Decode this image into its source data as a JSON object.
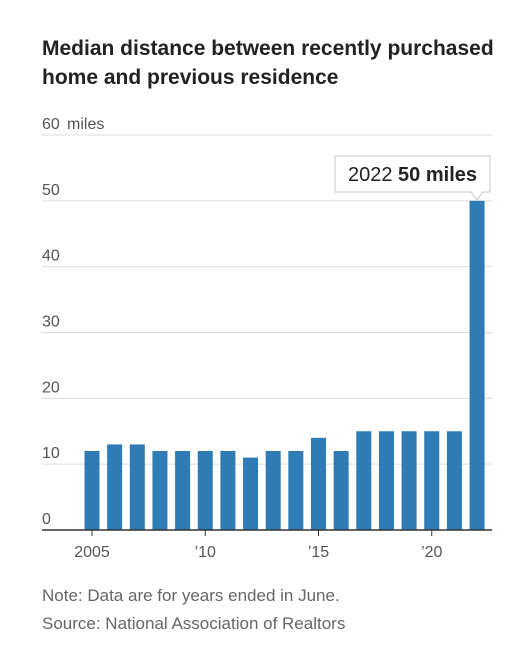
{
  "chart_data": {
    "type": "bar",
    "title": "Median distance between recently purchased home and previous residence",
    "unit": "miles",
    "categories": [
      2005,
      2006,
      2007,
      2008,
      2009,
      2010,
      2011,
      2012,
      2013,
      2014,
      2015,
      2016,
      2017,
      2018,
      2019,
      2020,
      2021,
      2022
    ],
    "values": [
      12,
      13,
      13,
      12,
      12,
      12,
      12,
      11,
      12,
      12,
      14,
      12,
      15,
      15,
      15,
      15,
      15,
      50
    ],
    "ylim": [
      0,
      60
    ],
    "y_ticks": [
      {
        "value": 60,
        "label": "60"
      },
      {
        "value": 50,
        "label": "50"
      },
      {
        "value": 40,
        "label": "40"
      },
      {
        "value": 30,
        "label": "30"
      },
      {
        "value": 20,
        "label": "20"
      },
      {
        "value": 10,
        "label": "10"
      },
      {
        "value": 0,
        "label": "0"
      }
    ],
    "y_top_unit_label": "miles",
    "x_ticks": [
      {
        "year": 2005,
        "label": "2005"
      },
      {
        "year": 2010,
        "label": "’10"
      },
      {
        "year": 2015,
        "label": "’15"
      },
      {
        "year": 2020,
        "label": "’20"
      }
    ],
    "grid": true,
    "bar_color": "#2e7bb5",
    "annotation": {
      "year": 2022,
      "year_label": "2022",
      "value_label": "50 miles"
    }
  },
  "notes": {
    "note": "Note: Data are for years ended in June.",
    "source": "Source: National Association of Realtors"
  }
}
